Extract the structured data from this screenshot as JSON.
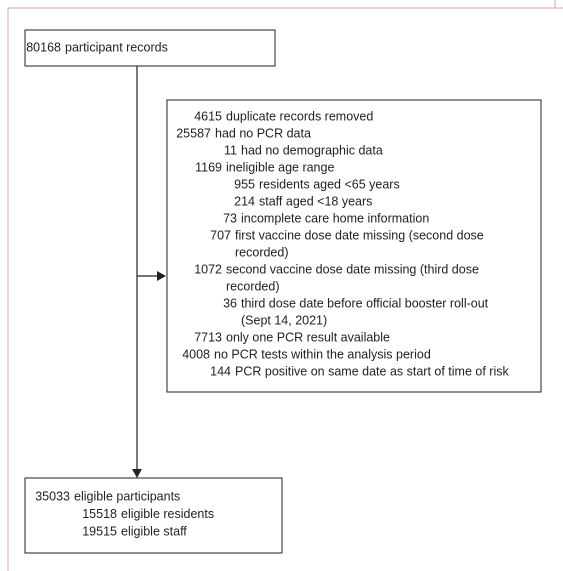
{
  "start": {
    "count": "80168",
    "text": "participant records"
  },
  "exclusions": [
    {
      "count": "4615",
      "text": "duplicate records removed"
    },
    {
      "count": "25587",
      "text": "had no PCR data"
    },
    {
      "count": "11",
      "text": "had no demographic data"
    },
    {
      "count": "1169",
      "text": "ineligible age range"
    },
    {
      "count": "955",
      "text": "residents aged <65 years"
    },
    {
      "count": "214",
      "text": "staff aged <18 years"
    },
    {
      "count": "73",
      "text": "incomplete care home information"
    },
    {
      "count": "707",
      "text": "first vaccine dose date missing (second dose",
      "continuation": "recorded)"
    },
    {
      "count": "1072",
      "text": "second vaccine dose date missing (third dose",
      "continuation": "recorded)"
    },
    {
      "count": "36",
      "text": "third dose date before official booster roll-out",
      "continuation": "(Sept 14, 2021)"
    },
    {
      "count": "7713",
      "text": "only one PCR result available"
    },
    {
      "count": "4008",
      "text": "no PCR tests within the analysis period"
    },
    {
      "count": "144",
      "text": "PCR positive on same date as start of time of risk"
    }
  ],
  "result": [
    {
      "count": "35033",
      "text": "eligible participants"
    },
    {
      "count": "15518",
      "text": "eligible residents"
    },
    {
      "count": "19515",
      "text": "eligible staff"
    }
  ]
}
